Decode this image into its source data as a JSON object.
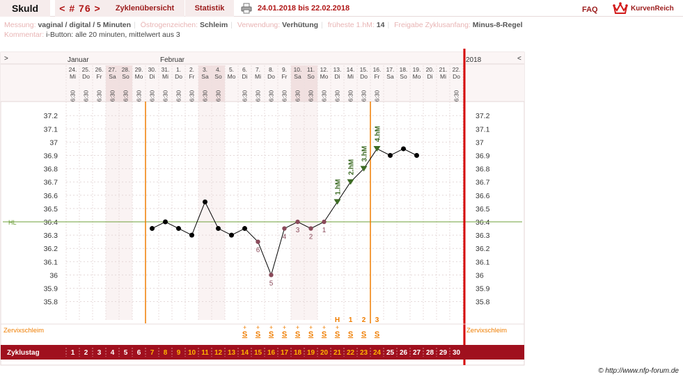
{
  "header": {
    "title": "Skuld",
    "cycle_number": "< # 76 >",
    "tab_overview": "Zyklenübersicht",
    "tab_stats": "Statistik",
    "date_range": "24.01.2018 bis 22.02.2018",
    "faq": "FAQ",
    "logo_text": "KurvenReich"
  },
  "meta": {
    "messung_label": "Messung:",
    "messung_value": "vaginal / digital / 5 Minuten",
    "oestrogen_label": "Östrogenzeichen:",
    "oestrogen_value": "Schleim",
    "verwendung_label": "Verwendung:",
    "verwendung_value": "Verhütung",
    "hm_label": "früheste 1.hM:",
    "hm_value": "14",
    "freigabe_label": "Freigabe Zyklusanfang:",
    "freigabe_value": "Minus-8-Regel",
    "kommentar_label": "Kommentar:",
    "kommentar_value": "i-Button: alle 20 minuten, mittelwert aus 3"
  },
  "footer": {
    "copyright": "© http://www.nfp-forum.de"
  },
  "chart_data": {
    "type": "line",
    "year_label": "2018",
    "nav_prev": ">",
    "nav_next": "<",
    "months": [
      {
        "label": "Januar",
        "day_index": 1
      },
      {
        "label": "Februar",
        "day_index": 8
      }
    ],
    "dates": [
      "24.",
      "25.",
      "26.",
      "27.",
      "28.",
      "29.",
      "30.",
      "31.",
      "1.",
      "2.",
      "3.",
      "4.",
      "5.",
      "6.",
      "7.",
      "8.",
      "9.",
      "10.",
      "11.",
      "12.",
      "13.",
      "14.",
      "15.",
      "16.",
      "17.",
      "18.",
      "19.",
      "20.",
      "21.",
      "22."
    ],
    "weekdays": [
      "Mi",
      "Do",
      "Fr",
      "Sa",
      "So",
      "Mo",
      "Di",
      "Mi",
      "Do",
      "Fr",
      "Sa",
      "So",
      "Mo",
      "Di",
      "Mi",
      "Do",
      "Fr",
      "Sa",
      "So",
      "Mo",
      "Di",
      "Mi",
      "Do",
      "Fr",
      "Sa",
      "So",
      "Mo",
      "Di",
      "Mi",
      "Do"
    ],
    "times": [
      "6:30",
      "6:30",
      "6:30",
      "6:30",
      "6:30",
      "6:30",
      "6:30",
      "6:30",
      "6:30",
      "6:30",
      "6:30",
      "6:30",
      "",
      "6:30",
      "6:30",
      "6:30",
      "6:30",
      "6:30",
      "6:30",
      "6:30",
      "6:30",
      "6:30",
      "6:30",
      "6:30",
      "",
      "",
      "",
      "",
      "",
      "6:30"
    ],
    "weekend_days": [
      4,
      5,
      11,
      12,
      18,
      19
    ],
    "cycle_days": [
      1,
      2,
      3,
      4,
      5,
      6,
      7,
      8,
      9,
      10,
      11,
      12,
      13,
      14,
      15,
      16,
      17,
      18,
      19,
      20,
      21,
      22,
      23,
      24,
      25,
      26,
      27,
      28,
      29,
      30
    ],
    "temperatures": [
      null,
      null,
      null,
      null,
      null,
      null,
      36.35,
      36.4,
      36.35,
      36.3,
      36.55,
      36.35,
      36.3,
      36.35,
      36.25,
      36.0,
      36.35,
      36.4,
      36.35,
      36.4,
      36.55,
      36.7,
      36.8,
      36.95,
      36.9,
      36.95,
      36.9,
      null,
      null,
      null
    ],
    "y_ticks": [
      35.8,
      35.9,
      36.0,
      36.1,
      36.2,
      36.3,
      36.4,
      36.5,
      36.6,
      36.7,
      36.8,
      36.9,
      37.0,
      37.1,
      37.2
    ],
    "y_tick_labels": [
      "35.8",
      "35.9",
      "36",
      "36.1",
      "36.2",
      "36.3",
      "36.4",
      "36.5",
      "36.6",
      "36.7",
      "36.8",
      "36.9",
      "37",
      "37.1",
      "37.2"
    ],
    "ylim": [
      35.72,
      37.33
    ],
    "coverline": {
      "value": 36.4,
      "label": "HL"
    },
    "low_labels": [
      {
        "day": 15,
        "label": "6"
      },
      {
        "day": 16,
        "label": "5"
      },
      {
        "day": 17,
        "label": "4"
      },
      {
        "day": 18,
        "label": "3"
      },
      {
        "day": 19,
        "label": "2"
      },
      {
        "day": 20,
        "label": "1"
      }
    ],
    "high_labels": [
      {
        "day": 21,
        "label": "1.hM"
      },
      {
        "day": 22,
        "label": "2.hM"
      },
      {
        "day": 23,
        "label": "3.hM"
      },
      {
        "day": 24,
        "label": "4.hM"
      }
    ],
    "cycle_markers": [
      7,
      24
    ],
    "end_marker_day": 31,
    "mucus_label": "Zervixschleim",
    "mucus_codes": [
      {
        "day": 21,
        "label": "H"
      },
      {
        "day": 22,
        "label": "1"
      },
      {
        "day": 23,
        "label": "2"
      },
      {
        "day": 24,
        "label": "3"
      }
    ],
    "mucus_row": [
      {
        "day": 14,
        "label": "S+"
      },
      {
        "day": 15,
        "label": "S+"
      },
      {
        "day": 16,
        "label": "S+"
      },
      {
        "day": 17,
        "label": "S+"
      },
      {
        "day": 18,
        "label": "S+"
      },
      {
        "day": 19,
        "label": "S+"
      },
      {
        "day": 20,
        "label": "S+"
      },
      {
        "day": 21,
        "label": "S+"
      },
      {
        "day": 22,
        "label": "S"
      },
      {
        "day": 23,
        "label": "S"
      },
      {
        "day": 24,
        "label": "S"
      }
    ],
    "zyklustag_label": "Zyklustag",
    "colors": {
      "line": "#000000",
      "point": "#000000",
      "low_point": "#8a4a5a",
      "high_point": "#3d6b24",
      "cycle_marker": "#ef7d00",
      "end_marker": "#d40000",
      "coverline": "#6d9f3a",
      "bar": "#a0101e"
    }
  }
}
